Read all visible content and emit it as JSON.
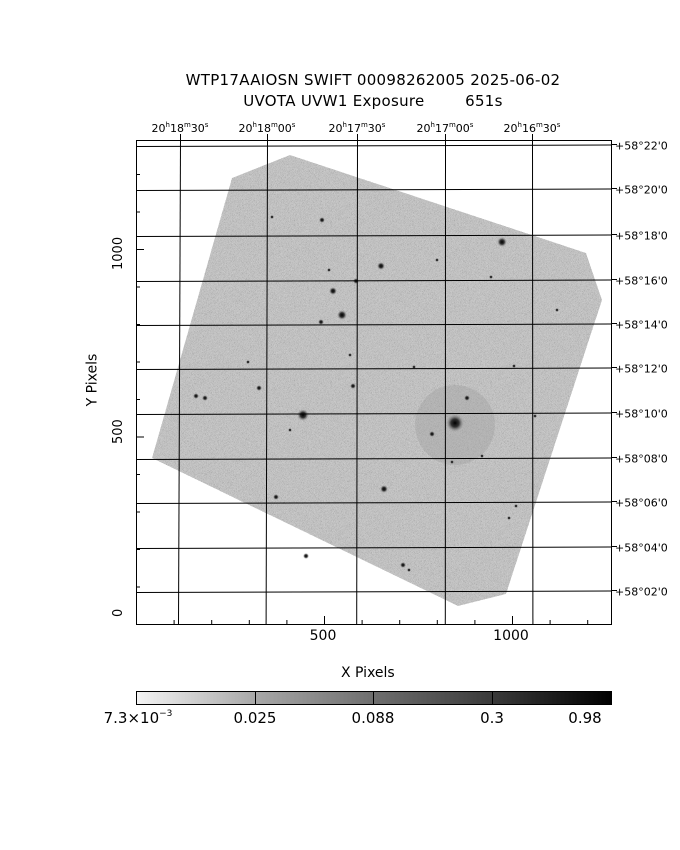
{
  "title": {
    "line1": "WTP17AAIOSN SWIFT 00098262005 2025-06-02",
    "line2": "UVOTA UVW1 Exposure        651s"
  },
  "axes": {
    "xlabel": "X Pixels",
    "ylabel": "Y Pixels",
    "x_ticks": [
      "500",
      "1000"
    ],
    "y_ticks": [
      "0",
      "500",
      "1000"
    ]
  },
  "ra_ticks": [
    {
      "h": "20",
      "m": "18",
      "s": "30"
    },
    {
      "h": "20",
      "m": "18",
      "s": "00"
    },
    {
      "h": "20",
      "m": "17",
      "s": "30"
    },
    {
      "h": "20",
      "m": "17",
      "s": "00"
    },
    {
      "h": "20",
      "m": "16",
      "s": "30"
    }
  ],
  "dec_ticks": [
    "+58°22'0",
    "+58°20'0",
    "+58°18'0",
    "+58°16'0",
    "+58°14'0",
    "+58°12'0",
    "+58°10'0",
    "+58°08'0",
    "+58°06'0",
    "+58°04'0",
    "+58°02'0"
  ],
  "colorbar": {
    "label_min_mantissa": "7.3×10",
    "label_min_exp": "−3",
    "labels": [
      "0.025",
      "0.088",
      "0.3",
      "0.98"
    ]
  },
  "colors": {
    "background": "#ffffff",
    "sky": "#bdbdbd",
    "grid": "#000000"
  }
}
